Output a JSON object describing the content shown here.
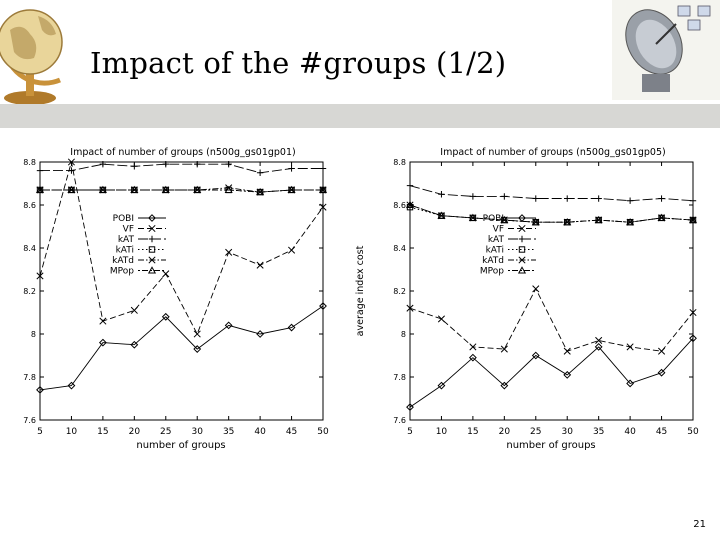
{
  "slide": {
    "title": "Impact of the #groups (1/2)",
    "page_number": "21"
  },
  "chart_data": [
    {
      "type": "line",
      "title": "Impact of number of groups (n500g_gs01gp01)",
      "xlabel": "number of groups",
      "ylabel": "",
      "xlim": [
        5,
        50
      ],
      "ylim": [
        7.6,
        8.8
      ],
      "x": [
        5,
        10,
        15,
        20,
        25,
        30,
        35,
        40,
        45,
        50
      ],
      "xticks": [
        "5",
        "10",
        "15",
        "20",
        "25",
        "30",
        "35",
        "40",
        "45",
        "50"
      ],
      "yticks": [
        "7.6",
        "7.8",
        "8",
        "8.2",
        "8.4",
        "8.6",
        "8.8"
      ],
      "legend_position": "left",
      "grid": false,
      "series": [
        {
          "name": "POBI",
          "marker": "diamond",
          "dash": "solid",
          "values": [
            7.74,
            7.76,
            7.96,
            7.95,
            8.08,
            7.93,
            8.04,
            8.0,
            8.03,
            8.13
          ]
        },
        {
          "name": "VF",
          "marker": "x",
          "dash": "dashed",
          "values": [
            8.27,
            8.8,
            8.06,
            8.11,
            8.28,
            8.0,
            8.38,
            8.32,
            8.39,
            8.59
          ]
        },
        {
          "name": "kAT",
          "marker": "plus",
          "dash": "longdash",
          "values": [
            8.76,
            8.76,
            8.79,
            8.78,
            8.79,
            8.79,
            8.79,
            8.75,
            8.77,
            8.77
          ]
        },
        {
          "name": "kATi",
          "marker": "square",
          "dash": "dotted",
          "values": [
            8.67,
            8.67,
            8.67,
            8.67,
            8.67,
            8.67,
            8.67,
            8.66,
            8.67,
            8.67
          ]
        },
        {
          "name": "kATd",
          "marker": "x",
          "dash": "dashdot",
          "values": [
            8.67,
            8.67,
            8.67,
            8.67,
            8.67,
            8.67,
            8.68,
            8.66,
            8.67,
            8.67
          ]
        },
        {
          "name": "MPop",
          "marker": "triangle",
          "dash": "dotdash",
          "values": [
            8.67,
            8.67,
            8.67,
            8.67,
            8.67,
            8.67,
            8.67,
            8.66,
            8.67,
            8.67
          ]
        }
      ]
    },
    {
      "type": "line",
      "title": "Impact of number of groups (n500g_gs01gp05)",
      "xlabel": "number of groups",
      "ylabel": "average index cost",
      "xlim": [
        5,
        50
      ],
      "ylim": [
        7.6,
        8.8
      ],
      "x": [
        5,
        10,
        15,
        20,
        25,
        30,
        35,
        40,
        45,
        50
      ],
      "xticks": [
        "5",
        "10",
        "15",
        "20",
        "25",
        "30",
        "35",
        "40",
        "45",
        "50"
      ],
      "yticks": [
        "7.6",
        "7.8",
        "8",
        "8.2",
        "8.4",
        "8.6",
        "8.8"
      ],
      "legend_position": "left",
      "grid": false,
      "series": [
        {
          "name": "POBI",
          "marker": "diamond",
          "dash": "solid",
          "values": [
            7.66,
            7.76,
            7.89,
            7.76,
            7.9,
            7.81,
            7.94,
            7.77,
            7.82,
            7.98
          ]
        },
        {
          "name": "VF",
          "marker": "x",
          "dash": "dashed",
          "values": [
            8.12,
            8.07,
            7.94,
            7.93,
            8.21,
            7.92,
            7.97,
            7.94,
            7.92,
            8.1
          ]
        },
        {
          "name": "kAT",
          "marker": "plus",
          "dash": "longdash",
          "values": [
            8.69,
            8.65,
            8.64,
            8.64,
            8.63,
            8.63,
            8.63,
            8.62,
            8.63,
            8.62
          ]
        },
        {
          "name": "kATi",
          "marker": "square",
          "dash": "dotted",
          "values": [
            8.59,
            8.55,
            8.54,
            8.53,
            8.52,
            8.52,
            8.53,
            8.52,
            8.54,
            8.53
          ]
        },
        {
          "name": "kATd",
          "marker": "x",
          "dash": "dashdot",
          "values": [
            8.6,
            8.55,
            8.54,
            8.53,
            8.52,
            8.52,
            8.53,
            8.52,
            8.54,
            8.53
          ]
        },
        {
          "name": "MPop",
          "marker": "triangle",
          "dash": "dotdash",
          "values": [
            8.6,
            8.55,
            8.54,
            8.53,
            8.52,
            8.52,
            8.53,
            8.52,
            8.54,
            8.53
          ]
        }
      ]
    }
  ]
}
